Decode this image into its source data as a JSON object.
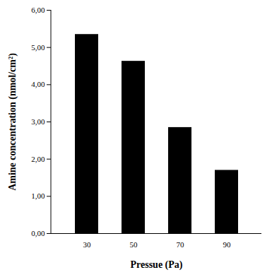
{
  "chart_data": {
    "type": "bar",
    "x_label": "Pressue (Pa)",
    "y_label": "Amine concentration (nmol/cm²)",
    "categories": [
      "30",
      "50",
      "70",
      "90"
    ],
    "values": [
      5.35,
      4.63,
      2.85,
      1.7
    ],
    "color": "#000000",
    "ylim": [
      0,
      6
    ],
    "yticks": [
      {
        "value": 0,
        "label": "0,00"
      },
      {
        "value": 1,
        "label": "1,00"
      },
      {
        "value": 2,
        "label": "2,00"
      },
      {
        "value": 3,
        "label": "3,00"
      },
      {
        "value": 4,
        "label": "4,00"
      },
      {
        "value": 5,
        "label": "5,00"
      },
      {
        "value": 6,
        "label": "6,00"
      }
    ],
    "grid": false
  }
}
